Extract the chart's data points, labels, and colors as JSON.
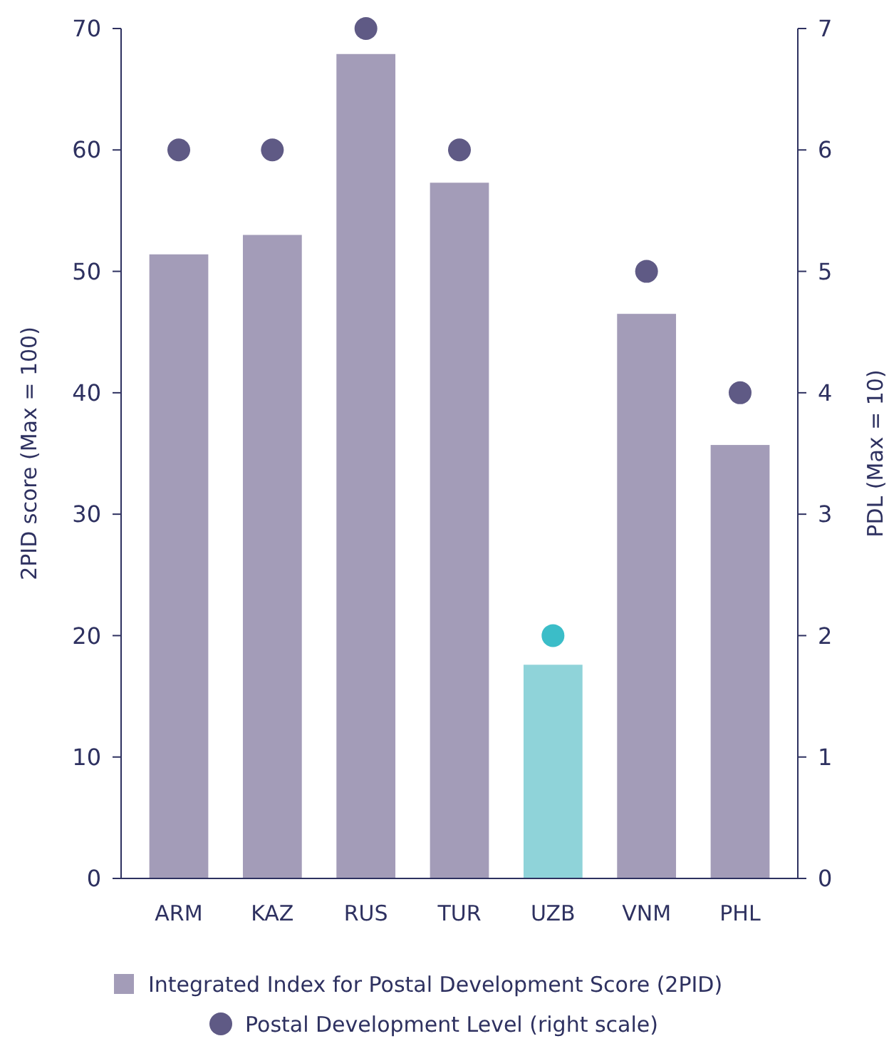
{
  "chart_data": {
    "type": "bar",
    "categories": [
      "ARM",
      "KAZ",
      "RUS",
      "TUR",
      "UZB",
      "VNM",
      "PHL"
    ],
    "series": [
      {
        "name": "Integrated Index for Postal Development Score (2PID)",
        "color": "#a39cb8",
        "colors": [
          "#a39cb8",
          "#a39cb8",
          "#a39cb8",
          "#a39cb8",
          "#8fd3d9",
          "#a39cb8",
          "#a39cb8"
        ],
        "values": [
          51.4,
          53.0,
          67.9,
          57.3,
          17.6,
          46.5,
          35.7
        ]
      },
      {
        "name": "Postal Development Level (right scale)",
        "type": "scatter",
        "axis": "y2",
        "color": "#5f5a85",
        "colors": [
          "#5f5a85",
          "#5f5a85",
          "#5f5a85",
          "#5f5a85",
          "#3bbdc8",
          "#5f5a85",
          "#5f5a85"
        ],
        "values": [
          6,
          6,
          7,
          6,
          2,
          5,
          4
        ]
      }
    ],
    "ylabel": "2PID score (Max = 100)",
    "y2label": "PDL (Max = 10)",
    "ylim": [
      0,
      70
    ],
    "yticks": [
      0,
      10,
      20,
      30,
      40,
      50,
      60,
      70
    ],
    "y2lim": [
      0,
      7
    ],
    "y2ticks": [
      0,
      1,
      2,
      3,
      4,
      5,
      6,
      7
    ],
    "legend": "bottom",
    "marker": "circle",
    "grid": false
  }
}
